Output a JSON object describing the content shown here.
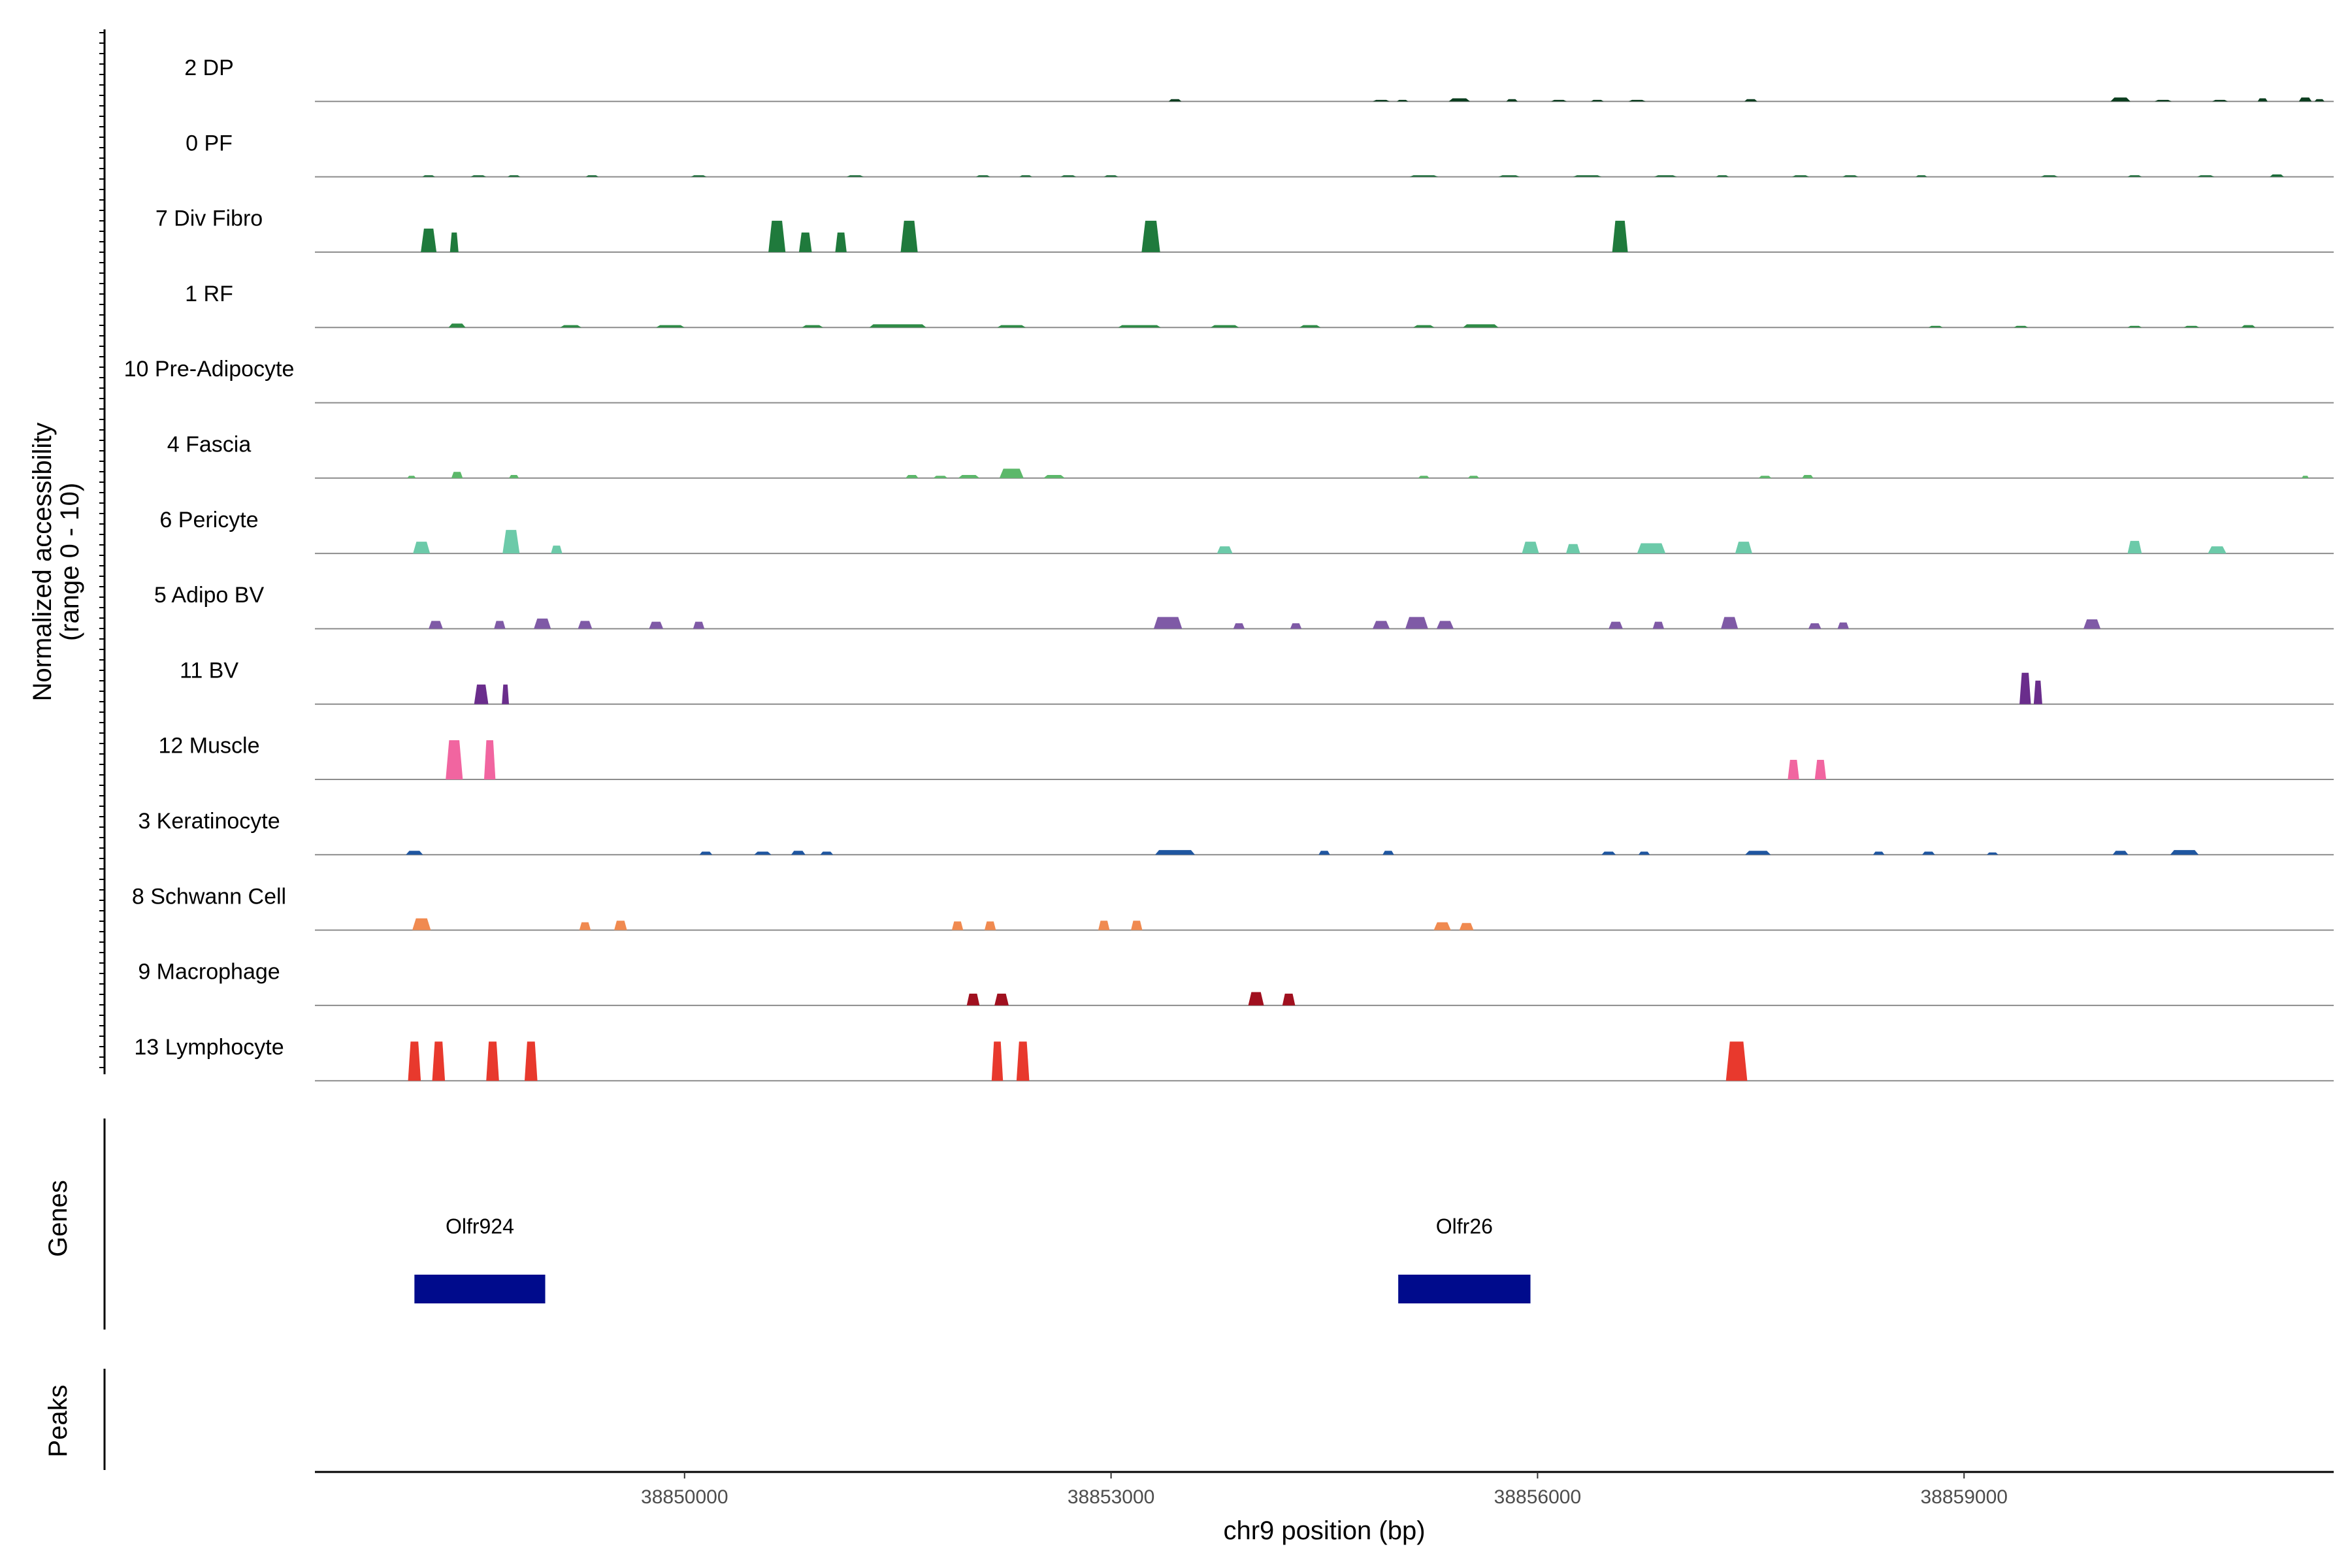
{
  "chart_data": {
    "type": "area",
    "ylabel_line1": "Normalized accessibility",
    "ylabel_line2": "(range 0 - 10)",
    "xlabel": "chr9 position (bp)",
    "xlim": [
      38847400,
      38861600
    ],
    "xticks": [
      38850000,
      38853000,
      38856000,
      38859000
    ],
    "xtick_labels": [
      "38850000",
      "38853000",
      "38856000",
      "38859000"
    ],
    "ylim": [
      0,
      10
    ],
    "grid": false,
    "tracks": [
      {
        "name": "2 DP",
        "color": "#0b3d1f",
        "peaks": [
          [
            38853450,
            90,
            0.3
          ],
          [
            38854900,
            120,
            0.2
          ],
          [
            38855050,
            80,
            0.2
          ],
          [
            38855450,
            150,
            0.4
          ],
          [
            38855820,
            80,
            0.3
          ],
          [
            38856150,
            110,
            0.2
          ],
          [
            38856420,
            90,
            0.2
          ],
          [
            38856700,
            120,
            0.2
          ],
          [
            38857500,
            90,
            0.3
          ],
          [
            38860100,
            140,
            0.5
          ],
          [
            38860400,
            120,
            0.2
          ],
          [
            38860800,
            110,
            0.2
          ],
          [
            38861100,
            70,
            0.4
          ],
          [
            38861400,
            90,
            0.5
          ],
          [
            38861500,
            70,
            0.3
          ]
        ]
      },
      {
        "name": "0 PF",
        "color": "#1a6b38",
        "peaks": [
          [
            38848200,
            90,
            0.2
          ],
          [
            38848550,
            110,
            0.2
          ],
          [
            38848800,
            90,
            0.2
          ],
          [
            38849350,
            90,
            0.2
          ],
          [
            38850100,
            110,
            0.2
          ],
          [
            38851200,
            120,
            0.2
          ],
          [
            38852100,
            100,
            0.2
          ],
          [
            38852400,
            90,
            0.2
          ],
          [
            38852700,
            110,
            0.2
          ],
          [
            38853000,
            100,
            0.2
          ],
          [
            38855200,
            200,
            0.2
          ],
          [
            38855800,
            150,
            0.2
          ],
          [
            38856350,
            200,
            0.2
          ],
          [
            38856900,
            160,
            0.2
          ],
          [
            38857300,
            90,
            0.2
          ],
          [
            38857850,
            120,
            0.2
          ],
          [
            38858200,
            110,
            0.2
          ],
          [
            38858700,
            80,
            0.2
          ],
          [
            38859600,
            120,
            0.2
          ],
          [
            38860200,
            100,
            0.2
          ],
          [
            38860700,
            120,
            0.2
          ],
          [
            38861200,
            100,
            0.3
          ]
        ]
      },
      {
        "name": "7 Div Fibro",
        "color": "#1f7a3c",
        "peaks": [
          [
            38848200,
            110,
            3.0
          ],
          [
            38848380,
            60,
            2.5
          ],
          [
            38850650,
            120,
            4.0
          ],
          [
            38850850,
            90,
            2.5
          ],
          [
            38851100,
            80,
            2.5
          ],
          [
            38851580,
            120,
            4.0
          ],
          [
            38853280,
            130,
            4.0
          ],
          [
            38856580,
            110,
            4.0
          ]
        ]
      },
      {
        "name": "1 RF",
        "color": "#2e8b46",
        "peaks": [
          [
            38848400,
            120,
            0.5
          ],
          [
            38849200,
            150,
            0.3
          ],
          [
            38849900,
            200,
            0.3
          ],
          [
            38850900,
            150,
            0.3
          ],
          [
            38851500,
            400,
            0.4
          ],
          [
            38852300,
            200,
            0.3
          ],
          [
            38853200,
            300,
            0.3
          ],
          [
            38853800,
            200,
            0.3
          ],
          [
            38854400,
            150,
            0.3
          ],
          [
            38855200,
            150,
            0.3
          ],
          [
            38855600,
            250,
            0.4
          ],
          [
            38858800,
            100,
            0.2
          ],
          [
            38859400,
            100,
            0.2
          ],
          [
            38860200,
            100,
            0.2
          ],
          [
            38860600,
            110,
            0.2
          ],
          [
            38861000,
            100,
            0.3
          ]
        ]
      },
      {
        "name": "10 Pre-Adipocyte",
        "color": "#3ea05a",
        "peaks": []
      },
      {
        "name": "4 Fascia",
        "color": "#5cb86a",
        "peaks": [
          [
            38848080,
            60,
            0.3
          ],
          [
            38848400,
            80,
            0.8
          ],
          [
            38848800,
            70,
            0.4
          ],
          [
            38851600,
            90,
            0.4
          ],
          [
            38851800,
            100,
            0.3
          ],
          [
            38852000,
            150,
            0.4
          ],
          [
            38852300,
            170,
            1.2
          ],
          [
            38852600,
            150,
            0.4
          ],
          [
            38855200,
            80,
            0.3
          ],
          [
            38855550,
            80,
            0.3
          ],
          [
            38857600,
            90,
            0.3
          ],
          [
            38857900,
            80,
            0.4
          ],
          [
            38861400,
            50,
            0.3
          ]
        ]
      },
      {
        "name": "6 Pericyte",
        "color": "#6ccaa9",
        "peaks": [
          [
            38848150,
            120,
            1.5
          ],
          [
            38848780,
            120,
            3.0
          ],
          [
            38849100,
            80,
            1.0
          ],
          [
            38853800,
            110,
            0.9
          ],
          [
            38855950,
            120,
            1.5
          ],
          [
            38856250,
            100,
            1.2
          ],
          [
            38856800,
            200,
            1.3
          ],
          [
            38857450,
            120,
            1.5
          ],
          [
            38860200,
            100,
            1.6
          ],
          [
            38860780,
            130,
            0.9
          ]
        ]
      },
      {
        "name": "5 Adipo BV",
        "color": "#7f5aa6",
        "peaks": [
          [
            38848250,
            100,
            1.0
          ],
          [
            38848700,
            80,
            1.0
          ],
          [
            38849000,
            120,
            1.3
          ],
          [
            38849300,
            100,
            1.0
          ],
          [
            38849800,
            100,
            0.9
          ],
          [
            38850100,
            80,
            0.9
          ],
          [
            38853400,
            200,
            1.5
          ],
          [
            38853900,
            80,
            0.7
          ],
          [
            38854300,
            80,
            0.7
          ],
          [
            38854900,
            120,
            1.0
          ],
          [
            38855150,
            160,
            1.5
          ],
          [
            38855350,
            120,
            1.0
          ],
          [
            38856550,
            100,
            0.9
          ],
          [
            38856850,
            80,
            0.9
          ],
          [
            38857350,
            120,
            1.5
          ],
          [
            38857950,
            90,
            0.7
          ],
          [
            38858150,
            80,
            0.8
          ],
          [
            38859900,
            120,
            1.2
          ]
        ]
      },
      {
        "name": "11 BV",
        "color": "#6a2d8c",
        "peaks": [
          [
            38848570,
            100,
            2.5
          ],
          [
            38848740,
            50,
            2.5
          ],
          [
            38859430,
            80,
            4.0
          ],
          [
            38859520,
            60,
            3.0
          ]
        ]
      },
      {
        "name": "12 Muscle",
        "color": "#f165a0",
        "peaks": [
          [
            38848380,
            120,
            5.0
          ],
          [
            38848630,
            80,
            5.0
          ],
          [
            38857800,
            80,
            2.5
          ],
          [
            38857990,
            80,
            2.5
          ]
        ]
      },
      {
        "name": "3 Keratinocyte",
        "color": "#1f56a0",
        "peaks": [
          [
            38848100,
            120,
            0.5
          ],
          [
            38850150,
            90,
            0.4
          ],
          [
            38850550,
            120,
            0.4
          ],
          [
            38850800,
            100,
            0.5
          ],
          [
            38851000,
            90,
            0.4
          ],
          [
            38853450,
            280,
            0.6
          ],
          [
            38854500,
            80,
            0.5
          ],
          [
            38854950,
            80,
            0.5
          ],
          [
            38856500,
            100,
            0.4
          ],
          [
            38856750,
            80,
            0.4
          ],
          [
            38857550,
            180,
            0.5
          ],
          [
            38858400,
            80,
            0.4
          ],
          [
            38858750,
            90,
            0.4
          ],
          [
            38859200,
            80,
            0.3
          ],
          [
            38860100,
            110,
            0.5
          ],
          [
            38860550,
            200,
            0.6
          ]
        ]
      },
      {
        "name": "8 Schwann Cell",
        "color": "#f08a50",
        "peaks": [
          [
            38848150,
            130,
            1.5
          ],
          [
            38849300,
            80,
            1.0
          ],
          [
            38849550,
            90,
            1.2
          ],
          [
            38851920,
            80,
            1.1
          ],
          [
            38852150,
            80,
            1.1
          ],
          [
            38852950,
            80,
            1.2
          ],
          [
            38853180,
            80,
            1.2
          ],
          [
            38855330,
            120,
            1.0
          ],
          [
            38855500,
            100,
            0.9
          ]
        ]
      },
      {
        "name": "9 Macrophage",
        "color": "#a0101f",
        "peaks": [
          [
            38852030,
            90,
            1.5
          ],
          [
            38852230,
            100,
            1.5
          ],
          [
            38854020,
            110,
            1.7
          ],
          [
            38854250,
            90,
            1.5
          ]
        ]
      },
      {
        "name": "13 Lymphocyte",
        "color": "#e8392d",
        "peaks": [
          [
            38848100,
            90,
            5.0
          ],
          [
            38848270,
            90,
            5.0
          ],
          [
            38848650,
            90,
            5.0
          ],
          [
            38848920,
            90,
            5.0
          ],
          [
            38852200,
            80,
            5.0
          ],
          [
            38852380,
            90,
            5.0
          ],
          [
            38857400,
            150,
            5.0
          ]
        ]
      }
    ],
    "genes_panel_title": "Genes",
    "peaks_panel_title": "Peaks",
    "genes": [
      {
        "name": "Olfr924",
        "start": 38848100,
        "end": 38849020,
        "color": "#000b8c"
      },
      {
        "name": "Olfr26",
        "start": 38855020,
        "end": 38855950,
        "color": "#000b8c"
      }
    ]
  }
}
